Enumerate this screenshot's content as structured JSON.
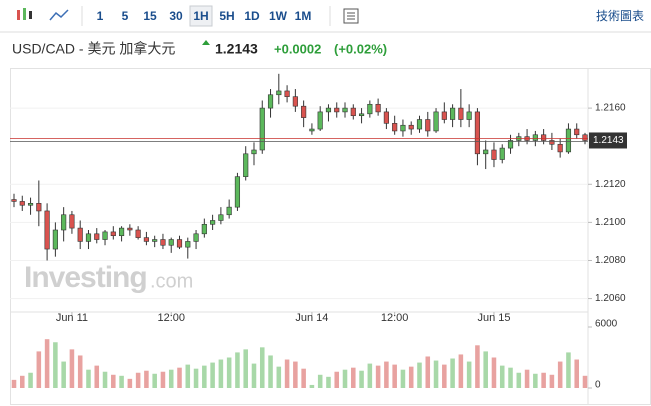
{
  "toolbar": {
    "intervals": [
      "1",
      "5",
      "15",
      "30",
      "1H",
      "5H",
      "1D",
      "1W",
      "1M"
    ],
    "active_interval": "1H",
    "technical_chart": "技術圖表"
  },
  "header": {
    "pair": "USD/CAD - 美元 加拿大元",
    "price": "1.2143",
    "change": "+0.0002",
    "change_percent": "(+0.02%)"
  },
  "watermark_brand": "Investing",
  "watermark_domain": ".com",
  "chart_data": {
    "type": "candlestick",
    "categories": [
      null,
      null,
      null,
      null,
      null,
      null,
      null,
      "Jun 11",
      null,
      null,
      null,
      null,
      null,
      null,
      null,
      null,
      null,
      null,
      null,
      "12:00",
      null,
      null,
      null,
      null,
      null,
      null,
      null,
      null,
      null,
      null,
      null,
      null,
      null,
      null,
      null,
      null,
      "Jun 14",
      null,
      null,
      null,
      null,
      null,
      null,
      null,
      null,
      null,
      "12:00",
      null,
      null,
      null,
      null,
      null,
      null,
      null,
      null,
      null,
      null,
      null,
      "Jun 15",
      null,
      null,
      null,
      null,
      null,
      null,
      null,
      null,
      null,
      null,
      null
    ],
    "open": [
      1.2112,
      1.2111,
      1.2109,
      1.211,
      1.2106,
      1.2086,
      1.2096,
      1.2104,
      1.2097,
      1.209,
      1.2094,
      1.2091,
      1.2095,
      1.2093,
      1.2097,
      1.2096,
      1.2092,
      1.209,
      1.2091,
      1.2088,
      1.2091,
      1.2087,
      1.209,
      1.2094,
      1.2099,
      1.2101,
      1.2104,
      1.2108,
      1.2124,
      1.2136,
      1.2138,
      1.216,
      1.2167,
      1.2169,
      1.2166,
      1.2161,
      1.2148,
      1.2149,
      1.2158,
      1.216,
      1.2158,
      1.216,
      1.2156,
      1.2157,
      1.2162,
      1.2158,
      1.2152,
      1.2148,
      1.2151,
      1.2149,
      1.2154,
      1.2148,
      1.2158,
      1.2154,
      1.216,
      1.2154,
      1.2158,
      1.2136,
      1.2138,
      1.2133,
      1.2139,
      1.2143,
      1.2145,
      1.2143,
      1.2146,
      1.2143,
      1.2141,
      1.2137,
      1.2149,
      1.2146
    ],
    "high": [
      1.2115,
      1.2114,
      1.2113,
      1.2122,
      1.211,
      1.21,
      1.2108,
      1.2106,
      1.2101,
      1.2096,
      1.2097,
      1.2096,
      1.2098,
      1.2098,
      1.2099,
      1.2098,
      1.2095,
      1.2093,
      1.2094,
      1.2092,
      1.2093,
      1.2092,
      1.2096,
      1.2102,
      1.2104,
      1.2108,
      1.2112,
      1.2126,
      1.214,
      1.2142,
      1.2164,
      1.217,
      1.2178,
      1.2172,
      1.217,
      1.2164,
      1.2152,
      1.2161,
      1.2162,
      1.2163,
      1.2163,
      1.2162,
      1.216,
      1.2164,
      1.2165,
      1.216,
      1.2156,
      1.2154,
      1.2153,
      1.2156,
      1.2158,
      1.216,
      1.2163,
      1.2162,
      1.217,
      1.2162,
      1.216,
      1.2143,
      1.2142,
      1.2141,
      1.2146,
      1.2147,
      1.2149,
      1.2148,
      1.2149,
      1.2147,
      1.2144,
      1.2152,
      1.2152,
      1.2147
    ],
    "low": [
      1.2108,
      1.2106,
      1.2104,
      1.2098,
      1.208,
      1.2082,
      1.209,
      1.2094,
      1.2086,
      1.2086,
      1.2089,
      1.2088,
      1.2091,
      1.209,
      1.2093,
      1.2091,
      1.2088,
      1.2087,
      1.2086,
      1.2084,
      1.2086,
      1.2081,
      1.2086,
      1.2092,
      1.2096,
      1.2099,
      1.2102,
      1.2106,
      1.2122,
      1.213,
      1.2136,
      1.2155,
      1.2162,
      1.2163,
      1.2158,
      1.215,
      1.2146,
      1.2148,
      1.2153,
      1.2155,
      1.2155,
      1.2154,
      1.2152,
      1.2155,
      1.2156,
      1.2149,
      1.2146,
      1.2145,
      1.2146,
      1.2147,
      1.2145,
      1.2147,
      1.2152,
      1.215,
      1.215,
      1.215,
      1.213,
      1.2128,
      1.2129,
      1.2131,
      1.2136,
      1.214,
      1.2141,
      1.214,
      1.2141,
      1.2138,
      1.2134,
      1.2136,
      1.2144,
      1.2141
    ],
    "close": [
      1.2111,
      1.2109,
      1.211,
      1.2106,
      1.2086,
      1.2096,
      1.2104,
      1.2097,
      1.209,
      1.2094,
      1.2091,
      1.2095,
      1.2093,
      1.2097,
      1.2096,
      1.2092,
      1.209,
      1.2091,
      1.2088,
      1.2091,
      1.2087,
      1.209,
      1.2094,
      1.2099,
      1.2101,
      1.2104,
      1.2108,
      1.2124,
      1.2136,
      1.2138,
      1.216,
      1.2167,
      1.2169,
      1.2166,
      1.2161,
      1.2155,
      1.2149,
      1.2158,
      1.216,
      1.2158,
      1.216,
      1.2156,
      1.2157,
      1.2162,
      1.2158,
      1.2152,
      1.2148,
      1.2151,
      1.2149,
      1.2154,
      1.2148,
      1.2158,
      1.2154,
      1.216,
      1.2154,
      1.2158,
      1.2136,
      1.2138,
      1.2133,
      1.2139,
      1.2143,
      1.2145,
      1.2143,
      1.2146,
      1.2143,
      1.2141,
      1.2137,
      1.2149,
      1.2146,
      1.2143
    ],
    "volume": [
      800,
      1200,
      1500,
      3600,
      4800,
      4500,
      2600,
      3800,
      3200,
      1800,
      2200,
      1600,
      1300,
      1200,
      900,
      1500,
      1700,
      1400,
      1600,
      1800,
      2000,
      2300,
      1900,
      2200,
      2500,
      2800,
      3000,
      3500,
      3800,
      2400,
      4000,
      3200,
      2100,
      2800,
      2600,
      1900,
      300,
      1300,
      1100,
      1600,
      1800,
      2000,
      1700,
      2400,
      2200,
      2600,
      2300,
      1800,
      2100,
      2500,
      3100,
      2700,
      2300,
      2900,
      3300,
      2600,
      4200,
      3600,
      3000,
      2200,
      2000,
      1500,
      1800,
      1400,
      1500,
      1300,
      2600,
      3500,
      2800,
      1200
    ],
    "ylim": [
      1.2054,
      1.218
    ],
    "yticks": [
      {
        "value": 1.206,
        "label": "1.2060"
      },
      {
        "value": 1.208,
        "label": "1.2080"
      },
      {
        "value": 1.21,
        "label": "1.2100"
      },
      {
        "value": 1.212,
        "label": "1.2120"
      },
      {
        "value": 1.216,
        "label": "1.2160"
      }
    ],
    "last_price": {
      "value": 1.2143,
      "label": "1.2143"
    },
    "volume_ylim": [
      0,
      6000
    ],
    "volume_ticks": [
      0,
      6000
    ],
    "up_color": "#5cb85c",
    "down_color": "#d9534f",
    "up_volume_color": "#a8d8a8",
    "down_volume_color": "#e8a2a0",
    "grid": true
  }
}
